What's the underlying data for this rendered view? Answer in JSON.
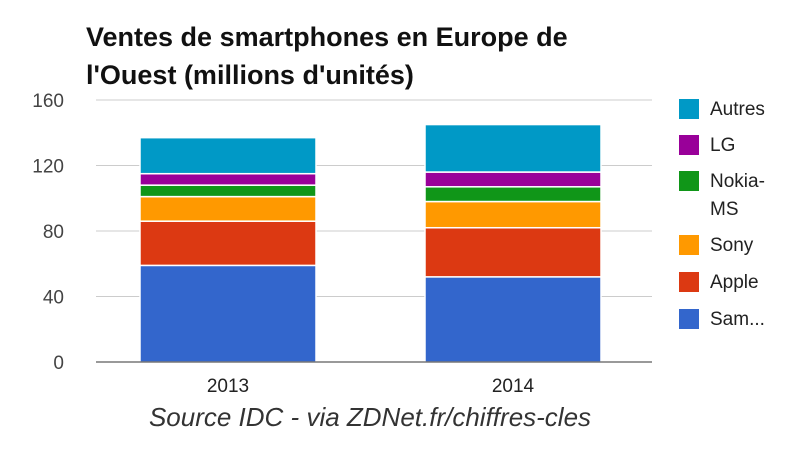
{
  "title_line1": "Ventes de smartphones en Europe de",
  "title_line2": "l'Ouest (millions d'unités)",
  "source": "Source IDC - via ZDNet.fr/chiffres-cles",
  "chart_data": {
    "type": "bar",
    "stacked": true,
    "title": "Ventes de smartphones en Europe de l'Ouest (millions d'unités)",
    "categories": [
      "2013",
      "2014"
    ],
    "ylim": [
      0,
      160
    ],
    "yticks": [
      0,
      40,
      80,
      120,
      160
    ],
    "grid": true,
    "legend_position": "right",
    "series": [
      {
        "name": "Sam...",
        "color": "#3366cc",
        "values": [
          59,
          52
        ]
      },
      {
        "name": "Apple",
        "color": "#dc3912",
        "values": [
          27,
          30
        ]
      },
      {
        "name": "Sony",
        "color": "#ff9900",
        "values": [
          15,
          16
        ]
      },
      {
        "name": "Nokia-MS",
        "color": "#109618",
        "values": [
          7,
          9
        ]
      },
      {
        "name": "LG",
        "color": "#990099",
        "values": [
          7,
          9
        ]
      },
      {
        "name": "Autres",
        "color": "#0099c6",
        "values": [
          22,
          29
        ]
      }
    ]
  }
}
